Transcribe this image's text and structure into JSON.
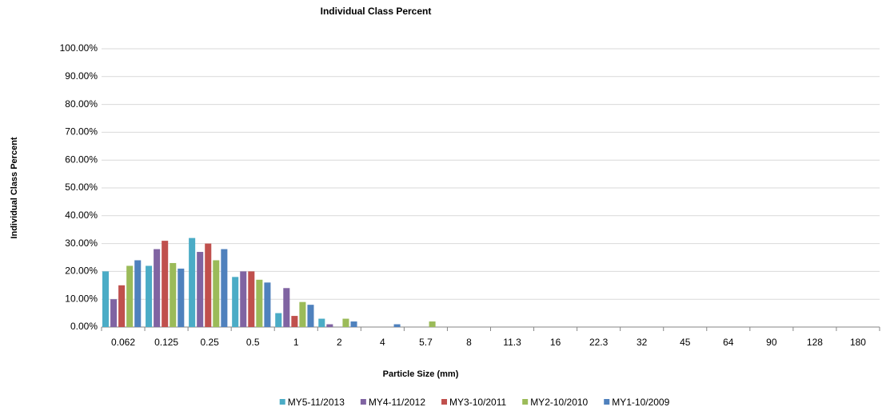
{
  "chart_data": {
    "type": "bar",
    "title": "Individual Class Percent",
    "x_label": "Particle Size (mm)",
    "y_label": "Individual Class Percent",
    "categories": [
      "0.062",
      "0.125",
      "0.25",
      "0.5",
      "1",
      "2",
      "4",
      "5.7",
      "8",
      "11.3",
      "16",
      "22.3",
      "32",
      "45",
      "64",
      "90",
      "128",
      "180"
    ],
    "series": [
      {
        "name": "MY5-11/2013",
        "color": "#4bacc6",
        "values": [
          20,
          22,
          32,
          18,
          5,
          3,
          0,
          0,
          0,
          0,
          0,
          0,
          0,
          0,
          0,
          0,
          0,
          0
        ]
      },
      {
        "name": "MY4-11/2012",
        "color": "#8064a2",
        "values": [
          10,
          28,
          27,
          20,
          14,
          1,
          0,
          0,
          0,
          0,
          0,
          0,
          0,
          0,
          0,
          0,
          0,
          0
        ]
      },
      {
        "name": "MY3-10/2011",
        "color": "#c0504d",
        "values": [
          15,
          31,
          30,
          20,
          4,
          0,
          0,
          0,
          0,
          0,
          0,
          0,
          0,
          0,
          0,
          0,
          0,
          0
        ]
      },
      {
        "name": "MY2-10/2010",
        "color": "#9bbb59",
        "values": [
          22,
          23,
          24,
          17,
          9,
          3,
          0,
          2,
          0,
          0,
          0,
          0,
          0,
          0,
          0,
          0,
          0,
          0
        ]
      },
      {
        "name": "MY1-10/2009",
        "color": "#4f81bd",
        "values": [
          24,
          21,
          28,
          16,
          8,
          2,
          1,
          0,
          0,
          0,
          0,
          0,
          0,
          0,
          0,
          0,
          0,
          0
        ]
      }
    ],
    "ylim": [
      0,
      100
    ],
    "yticks": [
      {
        "value": 0,
        "label": "0.00%"
      },
      {
        "value": 10,
        "label": "10.00%"
      },
      {
        "value": 20,
        "label": "20.00%"
      },
      {
        "value": 30,
        "label": "30.00%"
      },
      {
        "value": 40,
        "label": "40.00%"
      },
      {
        "value": 50,
        "label": "50.00%"
      },
      {
        "value": 60,
        "label": "60.00%"
      },
      {
        "value": 70,
        "label": "70.00%"
      },
      {
        "value": 80,
        "label": "80.00%"
      },
      {
        "value": 90,
        "label": "90.00%"
      },
      {
        "value": 100,
        "label": "100.00%"
      }
    ],
    "grid": true,
    "legend": "bottom"
  }
}
